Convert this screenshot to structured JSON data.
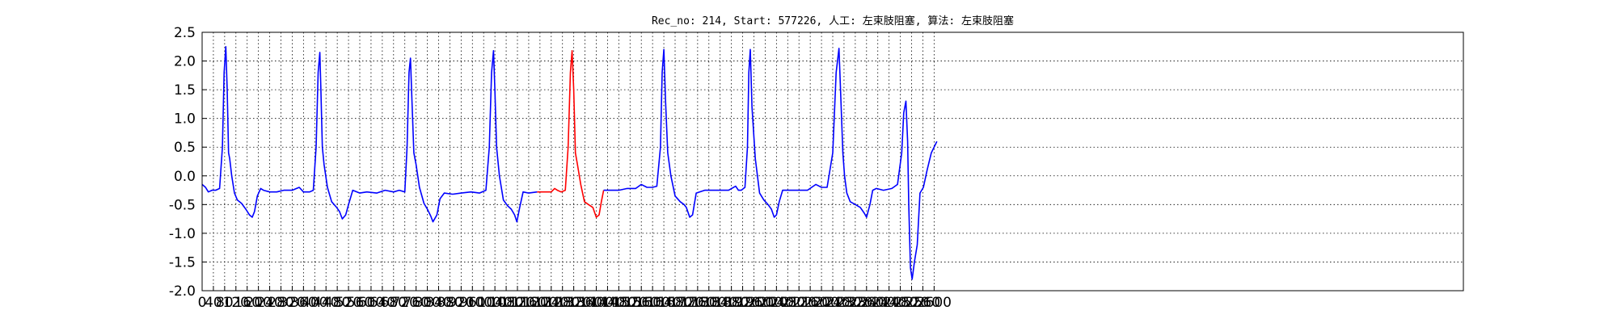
{
  "chart_data": {
    "type": "line",
    "title": "Rec_no: 214, Start: 577226, 人工: 左束肢阻塞, 算法: 左束肢阻塞",
    "xlabel": "",
    "ylabel": "",
    "xlim": [
      0,
      4480
    ],
    "ylim": [
      -2.0,
      2.5
    ],
    "grid": true,
    "x_ticks": [
      0,
      40,
      80,
      120,
      160,
      200,
      240,
      280,
      320,
      360,
      400,
      440,
      480,
      520,
      560,
      600,
      640,
      680,
      720,
      760,
      800,
      840,
      880,
      920,
      960,
      1000,
      1040,
      1080,
      1120,
      1160,
      1200,
      1240,
      1280,
      1320,
      1360,
      1400,
      1440,
      1480,
      1520,
      1560,
      1600,
      1640,
      1680,
      1720,
      1760,
      1800,
      1840,
      1880,
      1920,
      1960,
      2000,
      2040,
      2080,
      2120,
      2160,
      2200,
      2240,
      2280,
      2320,
      2360,
      2400,
      2440,
      2480,
      2520,
      2560,
      2600
    ],
    "y_ticks": [
      "-2.0",
      "-1.5",
      "-1.0",
      "-0.5",
      "0.0",
      "0.5",
      "1.0",
      "1.5",
      "2.0",
      "2.5"
    ],
    "series": [
      {
        "color": "#0000ff",
        "x": [
          0,
          12,
          22,
          35,
          48,
          62,
          72,
          78,
          84,
          89,
          94,
          98,
          105,
          115,
          125,
          140,
          155,
          168,
          178,
          186,
          196,
          208,
          218,
          240,
          265,
          290,
          320,
          345,
          360,
          370,
          382,
          395,
          405,
          412,
          418,
          422,
          427,
          433,
          445,
          460,
          478,
          488,
          498,
          510,
          520,
          535,
          560,
          585,
          620,
          650,
          680,
          700,
          720,
          728,
          735,
          740,
          746,
          752,
          760,
          772,
          788,
          800,
          812,
          820,
          834,
          845,
          860,
          890,
          920,
          955,
          985,
          1008,
          1020,
          1028,
          1035,
          1040,
          1046,
          1056,
          1070,
          1085,
          1098,
          1110,
          1118,
          1128,
          1140,
          1160,
          1190
        ],
        "y": [
          -0.15,
          -0.2,
          -0.28,
          -0.25,
          -0.25,
          -0.22,
          0.5,
          1.8,
          2.25,
          1.5,
          0.4,
          0.3,
          0.0,
          -0.3,
          -0.42,
          -0.48,
          -0.58,
          -0.68,
          -0.72,
          -0.62,
          -0.35,
          -0.22,
          -0.25,
          -0.28,
          -0.28,
          -0.25,
          -0.25,
          -0.2,
          -0.28,
          -0.28,
          -0.28,
          -0.25,
          0.5,
          1.8,
          2.15,
          1.5,
          0.5,
          0.2,
          -0.2,
          -0.45,
          -0.55,
          -0.62,
          -0.75,
          -0.68,
          -0.5,
          -0.25,
          -0.3,
          -0.28,
          -0.3,
          -0.25,
          -0.28,
          -0.25,
          -0.28,
          0.5,
          1.8,
          2.05,
          1.2,
          0.4,
          0.2,
          -0.2,
          -0.48,
          -0.58,
          -0.7,
          -0.8,
          -0.68,
          -0.4,
          -0.3,
          -0.32,
          -0.3,
          -0.28,
          -0.3,
          -0.25,
          0.5,
          1.8,
          2.18,
          1.5,
          0.5,
          0.0,
          -0.42,
          -0.52,
          -0.58,
          -0.68,
          -0.8,
          -0.55,
          -0.28,
          -0.3,
          -0.28
        ]
      },
      {
        "color": "#ff0000",
        "x": [
          1190,
          1215,
          1240,
          1252,
          1262,
          1275,
          1290,
          1300,
          1308,
          1314,
          1320,
          1326,
          1333,
          1345,
          1358,
          1372,
          1388,
          1400,
          1410,
          1418,
          1426
        ],
        "y": [
          -0.28,
          -0.28,
          -0.28,
          -0.22,
          -0.25,
          -0.28,
          -0.25,
          0.5,
          1.8,
          2.18,
          1.5,
          0.4,
          0.2,
          -0.15,
          -0.45,
          -0.5,
          -0.55,
          -0.72,
          -0.68,
          -0.45,
          -0.25
        ]
      },
      {
        "color": "#0000ff",
        "x": [
          1426,
          1450,
          1480,
          1510,
          1540,
          1560,
          1580,
          1600,
          1615,
          1628,
          1634,
          1640,
          1646,
          1654,
          1665,
          1680,
          1698,
          1712,
          1720,
          1732,
          1742,
          1755,
          1785,
          1815,
          1845,
          1870,
          1895,
          1905,
          1915,
          1928,
          1937,
          1942,
          1947,
          1953,
          1965,
          1980,
          1995,
          2010,
          2022,
          2032,
          2040,
          2050,
          2062,
          2090,
          2120,
          2150,
          2180,
          2200,
          2220,
          2240,
          2252,
          2262,
          2270,
          2276,
          2282,
          2290,
          2302,
          2320,
          2338,
          2352,
          2360,
          2372,
          2382,
          2395,
          2420,
          2450,
          2470,
          2485,
          2492,
          2500,
          2506,
          2510,
          2516,
          2522,
          2530,
          2540,
          2550,
          2562,
          2575,
          2590,
          2610
        ],
        "y": [
          -0.25,
          -0.25,
          -0.25,
          -0.22,
          -0.22,
          -0.15,
          -0.2,
          -0.2,
          -0.18,
          0.5,
          1.8,
          2.2,
          1.3,
          0.4,
          0.0,
          -0.35,
          -0.45,
          -0.5,
          -0.55,
          -0.72,
          -0.68,
          -0.3,
          -0.25,
          -0.25,
          -0.25,
          -0.25,
          -0.18,
          -0.25,
          -0.25,
          -0.2,
          0.5,
          1.8,
          2.2,
          1.2,
          0.3,
          -0.3,
          -0.42,
          -0.5,
          -0.58,
          -0.72,
          -0.68,
          -0.45,
          -0.25,
          -0.25,
          -0.25,
          -0.25,
          -0.15,
          -0.2,
          -0.2,
          0.4,
          1.8,
          2.22,
          1.2,
          0.4,
          0.0,
          -0.3,
          -0.45,
          -0.5,
          -0.55,
          -0.65,
          -0.72,
          -0.5,
          -0.25,
          -0.22,
          -0.25,
          -0.22,
          -0.15,
          0.4,
          1.1,
          1.3,
          0.6,
          -0.5,
          -1.6,
          -1.8,
          -1.5,
          -1.2,
          -0.3,
          -0.2,
          0.1,
          0.4,
          0.6
        ]
      }
    ]
  }
}
